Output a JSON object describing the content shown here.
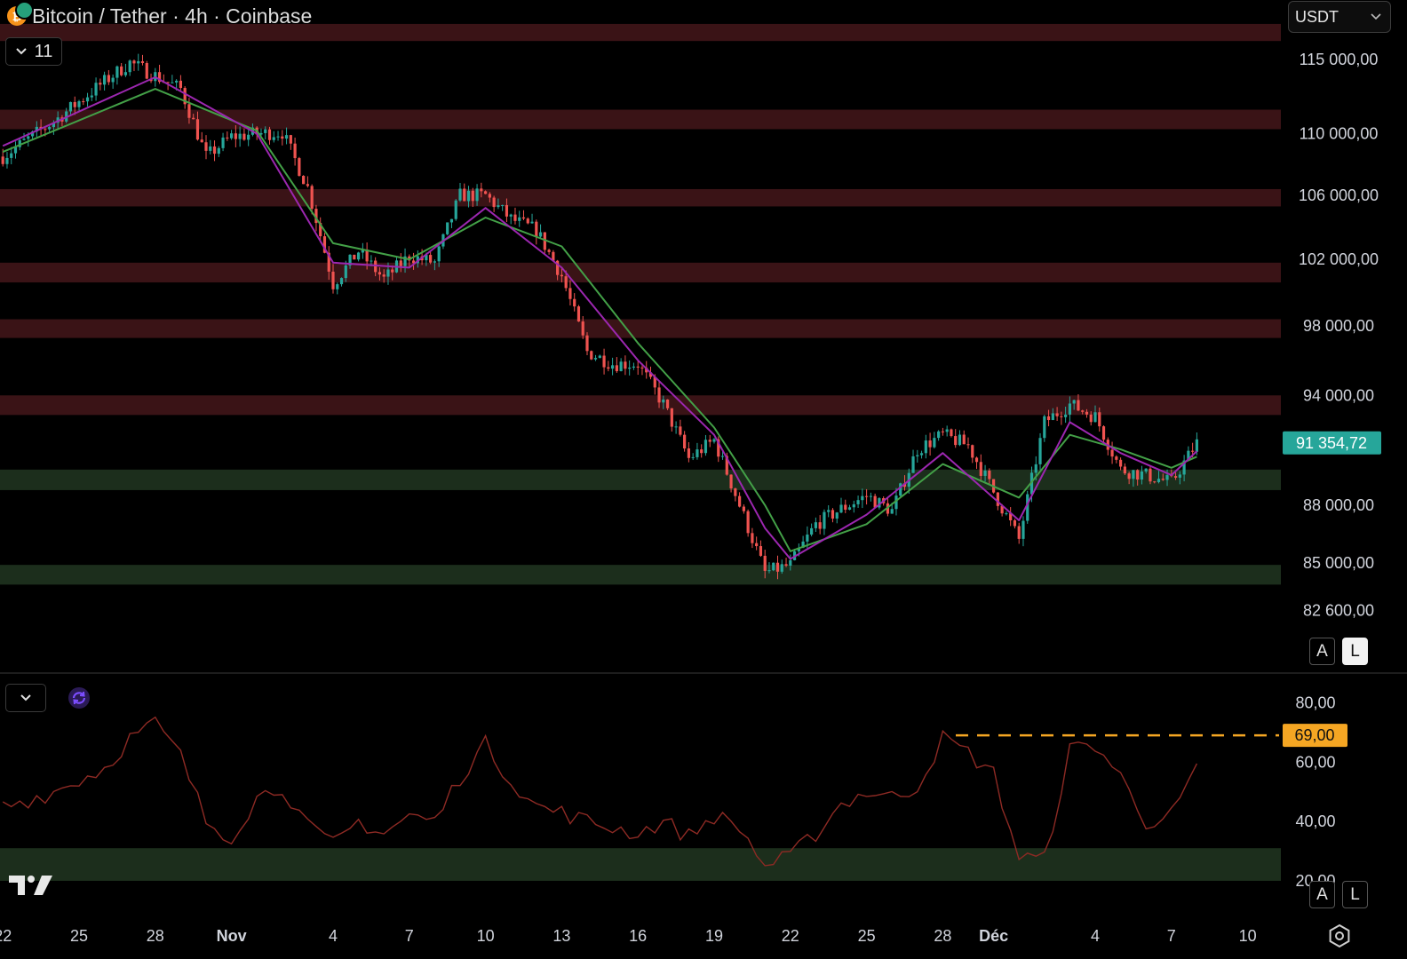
{
  "header": {
    "title": "Bitcoin / Tether · 4h · Coinbase",
    "indicator_count": "11",
    "currency_select": "USDT"
  },
  "icons": [
    "btc-usdt-coin-icon",
    "chevron-down-icon",
    "sync-icon",
    "tradingview-logo",
    "settings-icon"
  ],
  "scale_buttons": {
    "auto": "A",
    "log": "L"
  },
  "colors": {
    "bull": "#26a69a",
    "bear": "#ef5350",
    "ema_fast": "#9c27b0",
    "ema_slow": "#43a047",
    "resistance_zone": "#3a1316",
    "support_zone": "#1c2e1c",
    "rsi_line": "#8e2a24",
    "rsi_level": "#f5a623",
    "last_price_tag": "#26a69a"
  },
  "chart_data": [
    {
      "type": "candlestick",
      "title": "Bitcoin / Tether · 4h · Coinbase",
      "x_ticks": [
        "22",
        "25",
        "28",
        "Nov",
        "4",
        "7",
        "10",
        "13",
        "16",
        "19",
        "22",
        "25",
        "28",
        "Déc",
        "4",
        "7",
        "10"
      ],
      "y_ticks": [
        "115 000,00",
        "110 000,00",
        "106 000,00",
        "102 000,00",
        "98 000,00",
        "94 000,00",
        "88 000,00",
        "85 000,00",
        "82 600,00"
      ],
      "y_scale": "log",
      "ylim": [
        79600,
        119200
      ],
      "last_price": {
        "label": "91 354,72",
        "value": 91354.72
      },
      "resistance_zones": [
        [
          116300,
          117500
        ],
        [
          110300,
          111600
        ],
        [
          105300,
          106400
        ],
        [
          100600,
          101800
        ],
        [
          97300,
          98400
        ],
        [
          92900,
          94000
        ]
      ],
      "support_zones": [
        [
          88800,
          89900
        ],
        [
          83900,
          84900
        ]
      ],
      "series": [
        {
          "kind": "price",
          "x": [
            "Oct 22",
            "Oct 24",
            "Oct 26",
            "Oct 27",
            "Oct 29",
            "Oct 30",
            "Oct 31",
            "Nov 1",
            "Nov 2",
            "Nov 3",
            "Nov 4",
            "Nov 5",
            "Nov 6",
            "Nov 7",
            "Nov 8",
            "Nov 9",
            "Nov 10",
            "Nov 11",
            "Nov 12",
            "Nov 13",
            "Nov 14",
            "Nov 15",
            "Nov 16",
            "Nov 17",
            "Nov 18",
            "Nov 19",
            "Nov 20",
            "Nov 21",
            "Nov 22",
            "Nov 23",
            "Nov 24",
            "Nov 25",
            "Nov 26",
            "Nov 27",
            "Nov 28",
            "Nov 29",
            "Dec 1",
            "Dec 2",
            "Dec 3",
            "Dec 4",
            "Dec 5",
            "Dec 6",
            "Dec 7",
            "Dec 8"
          ],
          "y": [
            108500,
            110800,
            113500,
            114800,
            113000,
            108500,
            109800,
            110000,
            110100,
            106500,
            100500,
            102500,
            100800,
            102200,
            101800,
            106000,
            106000,
            104500,
            103800,
            101000,
            96500,
            95800,
            95800,
            93500,
            90500,
            91500,
            88000,
            84500,
            84900,
            87000,
            87800,
            88500,
            87700,
            91000,
            91800,
            91200,
            86200,
            92500,
            93500,
            92800,
            89900,
            89600,
            89200,
            91354.72
          ]
        },
        {
          "kind": "ema_fast",
          "x": [
            "Oct 22",
            "Oct 28",
            "Nov 1",
            "Nov 4",
            "Nov 7",
            "Nov 10",
            "Nov 13",
            "Nov 16",
            "Nov 19",
            "Nov 21",
            "Nov 22",
            "Nov 25",
            "Nov 28",
            "Dec 1",
            "Dec 3",
            "Dec 5",
            "Dec 7",
            "Dec 8"
          ],
          "y": [
            109200,
            113800,
            110000,
            101800,
            101500,
            105200,
            101500,
            96000,
            91800,
            86800,
            85200,
            87500,
            90800,
            87200,
            92500,
            90800,
            89600,
            90900
          ]
        },
        {
          "kind": "ema_slow",
          "x": [
            "Oct 22",
            "Oct 28",
            "Nov 1",
            "Nov 4",
            "Nov 7",
            "Nov 10",
            "Nov 13",
            "Nov 16",
            "Nov 19",
            "Nov 21",
            "Nov 22",
            "Nov 25",
            "Nov 28",
            "Dec 1",
            "Dec 3",
            "Dec 5",
            "Dec 7",
            "Dec 8"
          ],
          "y": [
            108800,
            113000,
            110200,
            103000,
            102000,
            104600,
            102800,
            97000,
            92200,
            88000,
            85600,
            87000,
            90200,
            88400,
            91800,
            91000,
            90000,
            90600
          ]
        }
      ]
    },
    {
      "type": "line",
      "y_ticks": [
        "80,00",
        "60,00",
        "40,00",
        "20,00"
      ],
      "ylim": [
        14,
        90
      ],
      "level": {
        "label": "69,00",
        "value": 69
      },
      "band": [
        20,
        31
      ],
      "series": [
        {
          "x": [
            "Oct 22",
            "Oct 24",
            "Oct 26",
            "Oct 27",
            "Oct 28",
            "Oct 29",
            "Oct 30",
            "Oct 31",
            "Nov 1",
            "Nov 2",
            "Nov 3",
            "Nov 4",
            "Nov 5",
            "Nov 6",
            "Nov 7",
            "Nov 8",
            "Nov 9",
            "Nov 10",
            "Nov 11",
            "Nov 12",
            "Nov 13",
            "Nov 14",
            "Nov 15",
            "Nov 16",
            "Nov 17",
            "Nov 18",
            "Nov 19",
            "Nov 20",
            "Nov 21",
            "Nov 22",
            "Nov 23",
            "Nov 24",
            "Nov 25",
            "Nov 26",
            "Nov 27",
            "Nov 28",
            "Nov 29",
            "Nov 30",
            "Dec 1",
            "Dec 2",
            "Dec 3",
            "Dec 4",
            "Dec 5",
            "Dec 6",
            "Dec 7",
            "Dec 8"
          ],
          "y": [
            45,
            50,
            58,
            68,
            73,
            62,
            40,
            35,
            48,
            52,
            38,
            32,
            40,
            36,
            42,
            40,
            55,
            66,
            54,
            45,
            43,
            40,
            38,
            36,
            40,
            35,
            42,
            38,
            25,
            28,
            36,
            46,
            50,
            48,
            52,
            68,
            63,
            56,
            28,
            27,
            64,
            66,
            55,
            40,
            42,
            57
          ]
        }
      ]
    }
  ]
}
